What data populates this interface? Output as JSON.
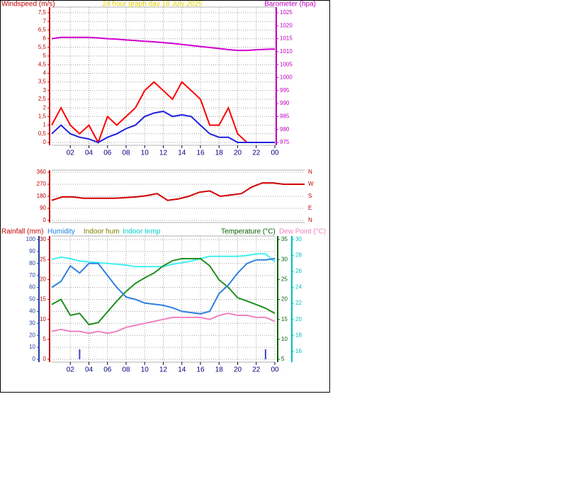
{
  "chart_data": [
    {
      "type": "line",
      "titles": [
        {
          "text": "Windspeed (m/s)",
          "color": "#c00000"
        },
        {
          "text": "24 hour graph day   18 July 2025",
          "color": "#e0d000"
        },
        {
          "text": "Barometer (hpa)",
          "color": "#c000c0"
        }
      ],
      "xlim": [
        0,
        24
      ],
      "xticks": [
        {
          "value": 2,
          "label": "02"
        },
        {
          "value": 4,
          "label": "04"
        },
        {
          "value": 6,
          "label": "06"
        },
        {
          "value": 8,
          "label": "08"
        },
        10,
        12,
        14,
        16,
        18,
        20,
        22,
        {
          "value": 24,
          "label": "00"
        }
      ],
      "axes": [
        {
          "color": "#c00000",
          "lim": [
            0,
            7.5
          ],
          "ticks": [
            0,
            {
              "value": 0.5,
              "label": "0,5"
            },
            1,
            {
              "value": 1.5,
              "label": "1,5"
            },
            2,
            {
              "value": 2.5,
              "label": "2,5"
            },
            3,
            {
              "value": 3.5,
              "label": "3,5"
            },
            4,
            {
              "value": 4.5,
              "label": "4,5"
            },
            5,
            {
              "value": 5.5,
              "label": "5,5"
            },
            6,
            {
              "value": 6.5,
              "label": "6,5"
            },
            7,
            {
              "value": 7.5,
              "label": "7,5"
            }
          ]
        },
        {
          "color": "#c000c0",
          "lim": [
            975,
            1025
          ],
          "ticks": [
            975,
            980,
            985,
            990,
            995,
            1000,
            1005,
            1010,
            1015,
            1020,
            1025
          ]
        }
      ],
      "grid": true,
      "x": [
        0,
        1,
        2,
        3,
        4,
        5,
        6,
        7,
        8,
        9,
        10,
        11,
        12,
        13,
        14,
        15,
        16,
        17,
        18,
        19,
        20,
        21,
        22,
        23,
        24
      ],
      "series": [
        {
          "color": "#ff0000",
          "axis": 0,
          "values": [
            1,
            2,
            1,
            0.5,
            1,
            0,
            1.5,
            1,
            1.5,
            2,
            3,
            3.5,
            3,
            2.5,
            3.5,
            3,
            2.5,
            1,
            1,
            2,
            0.5,
            0,
            0,
            0,
            0
          ]
        },
        {
          "color": "#2020e0",
          "axis": 0,
          "values": [
            0.5,
            1,
            0.5,
            0.3,
            0.2,
            0,
            0.3,
            0.5,
            0.8,
            1,
            1.5,
            1.7,
            1.8,
            1.5,
            1.6,
            1.5,
            1,
            0.5,
            0.3,
            0.3,
            0,
            0,
            0,
            0,
            0
          ]
        },
        {
          "color": "#d000d0",
          "axis": 1,
          "values": [
            1015,
            1015.5,
            1015.5,
            1015.5,
            1015.5,
            1015.3,
            1015,
            1014.8,
            1014.5,
            1014.3,
            1014,
            1013.8,
            1013.5,
            1013.2,
            1012.8,
            1012.4,
            1012,
            1011.6,
            1011.2,
            1010.8,
            1010.5,
            1010.5,
            1010.7,
            1010.9,
            1011
          ]
        }
      ]
    },
    {
      "type": "line",
      "titles": [],
      "xlim": [
        0,
        24
      ],
      "xticks": [],
      "axes": [
        {
          "color": "#c00000",
          "lim": [
            0,
            360
          ],
          "ticks": [
            0,
            90,
            180,
            270,
            360
          ]
        },
        {
          "color": "#c00000",
          "lim": [
            0,
            360
          ],
          "ticks": [
            {
              "value": 0,
              "label": "N"
            },
            {
              "value": 90,
              "label": "E"
            },
            {
              "value": 180,
              "label": "S"
            },
            {
              "value": 270,
              "label": "W"
            },
            {
              "value": 360,
              "label": "N"
            }
          ]
        }
      ],
      "grid": true,
      "x": [
        0,
        1,
        2,
        3,
        4,
        5,
        6,
        7,
        8,
        9,
        10,
        11,
        12,
        13,
        14,
        15,
        16,
        17,
        18,
        19,
        20,
        21,
        22,
        23,
        24
      ],
      "series": [
        {
          "color": "#d00000",
          "axis": 0,
          "values": [
            150,
            175,
            175,
            165,
            165,
            165,
            165,
            170,
            175,
            185,
            200,
            150,
            160,
            180,
            210,
            220,
            180,
            190,
            200,
            250,
            280,
            280,
            270,
            270,
            270
          ]
        }
      ]
    },
    {
      "type": "line",
      "titles": [
        {
          "text": "Rainfall (mm)",
          "color": "#c00000"
        },
        {
          "text": "Humidity",
          "color": "#2080e0"
        },
        {
          "text": "Indoor hum",
          "color": "#808000"
        },
        {
          "text": "Indoor temp",
          "color": "#00d0d0"
        },
        {
          "text": "Temperature (°C)",
          "color": "#006000"
        },
        {
          "text": "Dew Point (°C)",
          "color": "#f080c0"
        }
      ],
      "xlim": [
        0,
        24
      ],
      "xticks": [
        {
          "value": 2,
          "label": "02"
        },
        {
          "value": 4,
          "label": "04"
        },
        {
          "value": 6,
          "label": "06"
        },
        {
          "value": 8,
          "label": "08"
        },
        10,
        12,
        14,
        16,
        18,
        20,
        22,
        {
          "value": 24,
          "label": "00"
        }
      ],
      "axes": [
        {
          "color": "#2040a0",
          "lim": [
            0,
            100
          ],
          "ticks": [
            0,
            10,
            20,
            30,
            40,
            50,
            60,
            70,
            80,
            90,
            100
          ]
        },
        {
          "color": "#c00000",
          "lim": [
            0,
            30
          ],
          "ticks": [
            0,
            5,
            10,
            15,
            20,
            25,
            30
          ]
        },
        {
          "color": "#006000",
          "lim": [
            5,
            35
          ],
          "ticks": [
            5,
            10,
            15,
            20,
            25,
            30,
            35
          ]
        },
        {
          "color": "#00c0c0",
          "lim": [
            15,
            30
          ],
          "ticks": [
            16,
            18,
            20,
            22,
            24,
            26,
            28,
            30
          ]
        }
      ],
      "grid": true,
      "x": [
        0,
        1,
        2,
        3,
        4,
        5,
        6,
        7,
        8,
        9,
        10,
        11,
        12,
        13,
        14,
        15,
        16,
        17,
        18,
        19,
        20,
        21,
        22,
        23,
        24
      ],
      "series": [
        {
          "color": "#4040d0",
          "axis": 1,
          "kind": "bar",
          "values": [
            0,
            0,
            0,
            2.5,
            0,
            0,
            0,
            0,
            0,
            0,
            0,
            0,
            0,
            0,
            0,
            0,
            0,
            0,
            0,
            0,
            0,
            0,
            0,
            2.5,
            0
          ]
        },
        {
          "color": "#40f0f0",
          "axis": 3,
          "values": [
            27.5,
            27.8,
            27.6,
            27.3,
            27.2,
            27.1,
            27,
            26.9,
            26.8,
            26.6,
            26.6,
            26.6,
            26.6,
            26.9,
            27.1,
            27.3,
            27.6,
            27.9,
            27.9,
            27.9,
            27.9,
            28,
            28.2,
            28.2,
            27.2
          ]
        },
        {
          "color": "#209020",
          "axis": 2,
          "values": [
            18.7,
            20,
            16,
            16.5,
            13.7,
            14.2,
            16.9,
            19.6,
            22,
            24,
            25.4,
            26.6,
            28.4,
            29.7,
            30.2,
            30.2,
            30.2,
            28.4,
            24.9,
            23,
            20.4,
            19.6,
            18.7,
            17.8,
            16.5
          ]
        },
        {
          "color": "#3080e0",
          "axis": 0,
          "values": [
            60,
            65,
            78,
            72,
            80,
            80,
            70,
            60,
            52,
            50,
            47,
            46,
            45,
            43,
            40,
            39,
            38,
            40,
            55,
            62,
            72,
            80,
            83,
            83,
            84
          ]
        },
        {
          "color": "#f080c0",
          "axis": 2,
          "values": [
            12,
            12.5,
            12,
            12,
            11.5,
            12,
            11.5,
            12,
            13,
            13.5,
            14,
            14.5,
            15,
            15.5,
            15.5,
            15.5,
            15.5,
            15,
            16,
            16.5,
            16,
            16,
            15.5,
            15.5,
            14.5
          ]
        }
      ]
    }
  ]
}
